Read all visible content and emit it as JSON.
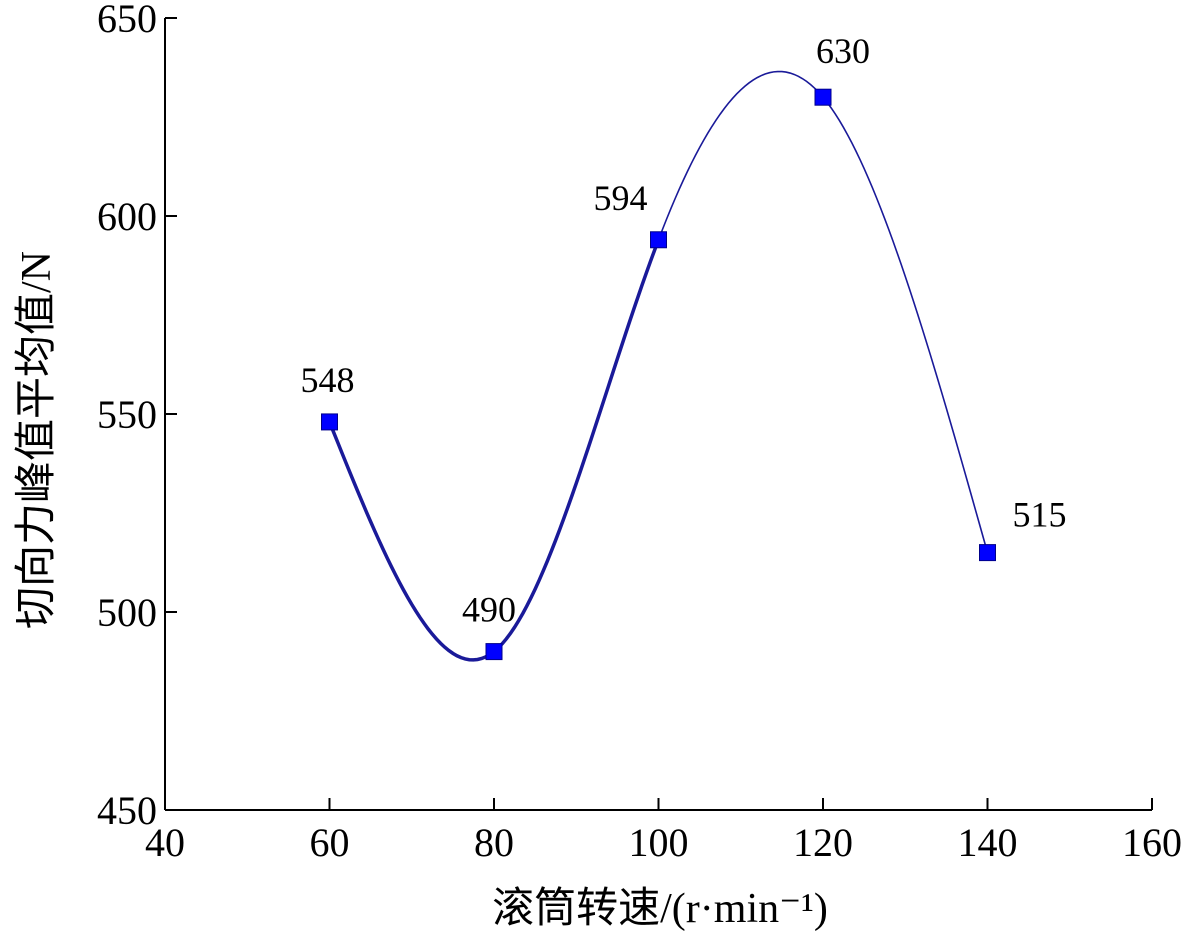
{
  "chart_data": {
    "type": "line",
    "xlabel": "滚筒转速/(r·min⁻¹)",
    "ylabel": "切向力峰值平均值/N",
    "xlim": [
      40,
      160
    ],
    "ylim": [
      450,
      650
    ],
    "xticks": [
      "40",
      "60",
      "80",
      "100",
      "120",
      "140",
      "160"
    ],
    "yticks": [
      "450",
      "500",
      "550",
      "600",
      "650"
    ],
    "grid": false,
    "marker": "square",
    "series": [
      {
        "x": [
          60,
          80,
          100,
          120,
          140
        ],
        "y": [
          548,
          490,
          594,
          630,
          515
        ],
        "labels": [
          "548",
          "490",
          "594",
          "630",
          "515"
        ],
        "marker_color": "#0000ff",
        "line_color": "#1a1a99"
      }
    ]
  }
}
